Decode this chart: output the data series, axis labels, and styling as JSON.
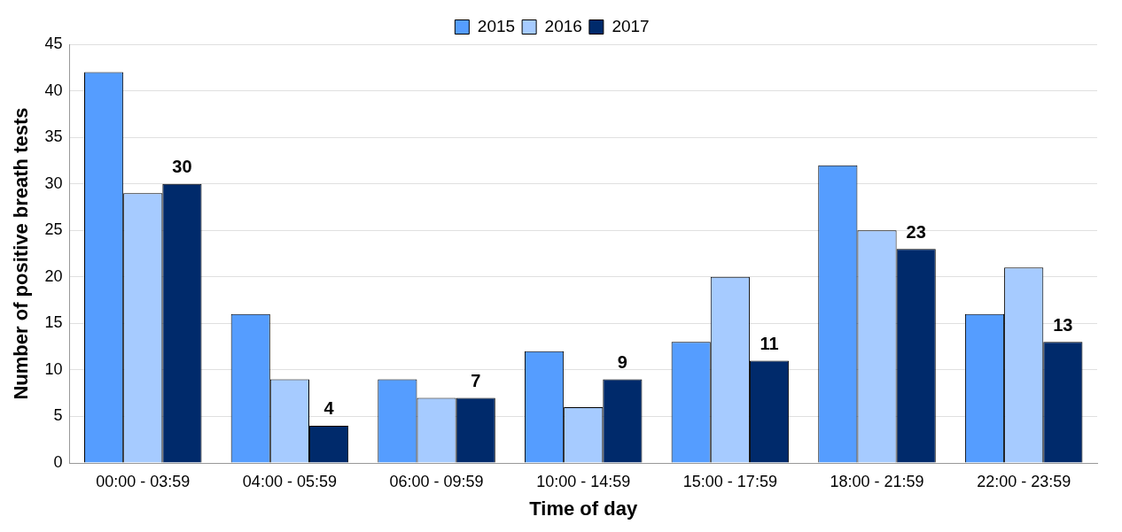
{
  "chart_data": {
    "type": "bar",
    "xlabel": "Time of day",
    "ylabel": "Number of positive breath tests",
    "categories": [
      "00:00 - 03:59",
      "04:00 - 05:59",
      "06:00 - 09:59",
      "10:00 - 14:59",
      "15:00 - 17:59",
      "18:00 - 21:59",
      "22:00 - 23:59"
    ],
    "series": [
      {
        "name": "2015",
        "color": "#559dff",
        "values": [
          42,
          16,
          9,
          12,
          13,
          32,
          16
        ]
      },
      {
        "name": "2016",
        "color": "#a6cbff",
        "values": [
          29,
          9,
          7,
          6,
          20,
          25,
          21
        ]
      },
      {
        "name": "2017",
        "color": "#002a6b",
        "values": [
          30,
          4,
          7,
          9,
          11,
          23,
          13
        ],
        "value_labels": [
          "30",
          "4",
          "7",
          "9",
          "11",
          "23",
          "13"
        ]
      }
    ],
    "ylim": [
      0,
      45
    ],
    "yticks": [
      0,
      5,
      10,
      15,
      20,
      25,
      30,
      35,
      40,
      45
    ],
    "grid": "y",
    "legend": "top"
  }
}
